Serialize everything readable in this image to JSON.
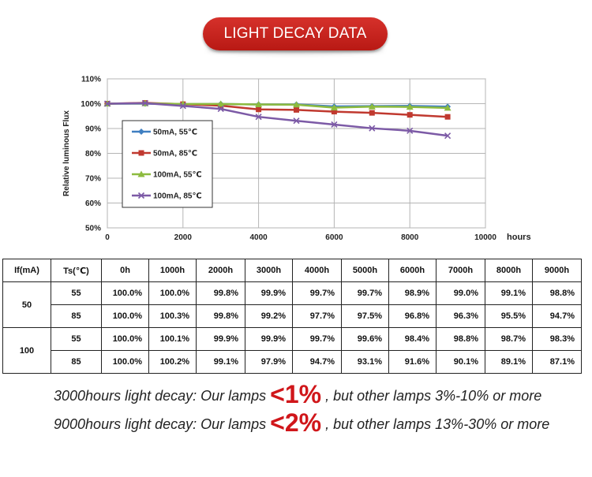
{
  "banner": {
    "title": "LIGHT DECAY DATA"
  },
  "chart_data": {
    "type": "line",
    "title": "",
    "xlabel": "hours",
    "ylabel": "Relative luminous Flux",
    "xlim": [
      0,
      10000
    ],
    "ylim": [
      50,
      110
    ],
    "x_ticks": [
      "0",
      "2000",
      "4000",
      "6000",
      "8000",
      "10000"
    ],
    "y_ticks": [
      "50%",
      "60%",
      "70%",
      "80%",
      "90%",
      "100%",
      "110%"
    ],
    "grid": true,
    "legend_position": "left-center inside",
    "x": [
      0,
      1000,
      2000,
      3000,
      4000,
      5000,
      6000,
      7000,
      8000,
      9000
    ],
    "series": [
      {
        "name": "50mA, 55℃",
        "color": "#3f7fc1",
        "marker": "diamond",
        "values": [
          100.0,
          100.0,
          99.8,
          99.9,
          99.7,
          99.7,
          98.9,
          99.0,
          99.1,
          98.8
        ]
      },
      {
        "name": "50mA, 85℃",
        "color": "#c0392f",
        "marker": "square",
        "values": [
          100.0,
          100.3,
          99.8,
          99.2,
          97.7,
          97.5,
          96.8,
          96.3,
          95.5,
          94.7
        ]
      },
      {
        "name": "100mA, 55℃",
        "color": "#8dbb3f",
        "marker": "triangle",
        "values": [
          100.0,
          100.1,
          99.9,
          99.9,
          99.7,
          99.6,
          98.4,
          98.8,
          98.7,
          98.3
        ]
      },
      {
        "name": "100mA, 85℃",
        "color": "#7c5aa6",
        "marker": "x",
        "values": [
          100.0,
          100.2,
          99.1,
          97.9,
          94.7,
          93.1,
          91.6,
          90.1,
          89.1,
          87.1
        ]
      }
    ]
  },
  "table": {
    "headers": [
      "If(mA)",
      "Ts(℃)",
      "0h",
      "1000h",
      "2000h",
      "3000h",
      "4000h",
      "5000h",
      "6000h",
      "7000h",
      "8000h",
      "9000h"
    ],
    "groups": [
      {
        "current": "50",
        "rows": [
          {
            "ts": "55",
            "values": [
              "100.0%",
              "100.0%",
              "99.8%",
              "99.9%",
              "99.7%",
              "99.7%",
              "98.9%",
              "99.0%",
              "99.1%",
              "98.8%"
            ]
          },
          {
            "ts": "85",
            "values": [
              "100.0%",
              "100.3%",
              "99.8%",
              "99.2%",
              "97.7%",
              "97.5%",
              "96.8%",
              "96.3%",
              "95.5%",
              "94.7%"
            ]
          }
        ]
      },
      {
        "current": "100",
        "rows": [
          {
            "ts": "55",
            "values": [
              "100.0%",
              "100.1%",
              "99.9%",
              "99.9%",
              "99.7%",
              "99.6%",
              "98.4%",
              "98.8%",
              "98.7%",
              "98.3%"
            ]
          },
          {
            "ts": "85",
            "values": [
              "100.0%",
              "100.2%",
              "99.1%",
              "97.9%",
              "94.7%",
              "93.1%",
              "91.6%",
              "90.1%",
              "89.1%",
              "87.1%"
            ]
          }
        ]
      }
    ]
  },
  "claims": [
    {
      "prefix": "3000hours light decay: Our lamps ",
      "highlight": "<1%",
      "suffix": " , but other lamps 3%-10% or more"
    },
    {
      "prefix": "9000hours light decay: Our lamps ",
      "highlight": "<2%",
      "suffix": " , but other lamps 13%-30% or more"
    }
  ]
}
